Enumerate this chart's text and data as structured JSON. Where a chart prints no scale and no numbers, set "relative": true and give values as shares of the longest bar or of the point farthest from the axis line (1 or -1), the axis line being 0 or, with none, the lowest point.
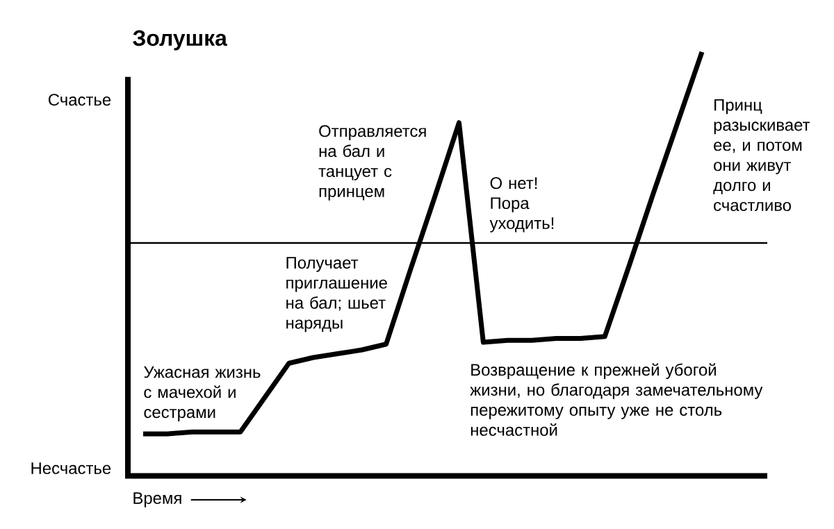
{
  "chart_data": {
    "type": "line",
    "title": "Золушка",
    "xlabel": "Время",
    "relative": true,
    "marker": "none",
    "line_style": "solid",
    "categories": [
      null,
      null,
      null,
      null,
      null,
      null,
      null,
      null,
      null,
      null,
      null,
      null,
      null,
      null,
      null,
      null,
      null,
      null,
      null,
      null,
      null,
      null,
      null,
      null
    ],
    "series": [
      {
        "color": "#000000",
        "values": [
          -1.0,
          -1.0,
          -0.99,
          -0.99,
          -0.99,
          -0.81,
          -0.63,
          -0.6,
          -0.58,
          -0.56,
          -0.53,
          -0.14,
          0.24,
          0.63,
          -0.52,
          -0.51,
          -0.51,
          -0.5,
          -0.5,
          -0.49,
          -0.12,
          0.26,
          0.63,
          1.0
        ]
      }
    ],
    "ref_lines": [
      {
        "axis": "y",
        "value": 0,
        "color": "#000000"
      }
    ],
    "annotations": [
      "Счастье",
      "Несчастье",
      "Ужасная жизнь с мачехой и сестрами",
      "Получает приглашение на бал; шьет наряды",
      "Отправляется на бал и танцует с принцем",
      "О нет! Пора уходить!",
      "Возвращение к прежней убогой жизни, но благодаря замечательному пережитому опыту уже не столь несчастной",
      "Принц разыскивает ее, и потом они живут долго и счастливо"
    ]
  }
}
